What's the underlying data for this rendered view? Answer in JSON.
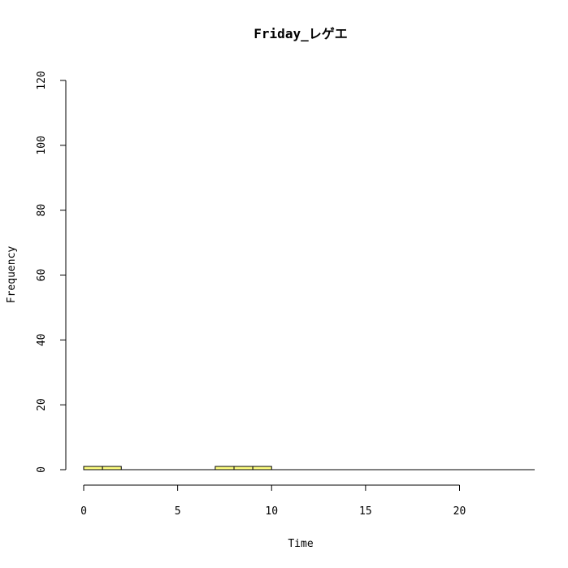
{
  "chart_data": {
    "type": "bar",
    "title": "Friday_レゲエ",
    "xlabel": "Time",
    "ylabel": "Frequency",
    "xlim": [
      0,
      24
    ],
    "ylim": [
      0,
      120
    ],
    "x_ticks": [
      "0",
      "5",
      "10",
      "15",
      "20"
    ],
    "y_ticks": [
      "0",
      "20",
      "40",
      "60",
      "80",
      "100",
      "120"
    ],
    "bin_width": 1,
    "bins": [
      {
        "start": 0,
        "value": 1
      },
      {
        "start": 1,
        "value": 1
      },
      {
        "start": 7,
        "value": 1
      },
      {
        "start": 8,
        "value": 1
      },
      {
        "start": 9,
        "value": 1
      }
    ],
    "baseline": {
      "from": 0,
      "to": 24
    },
    "bar_color": "#ffff80",
    "edge_color": "#000000",
    "grid": false,
    "legend": "none"
  }
}
